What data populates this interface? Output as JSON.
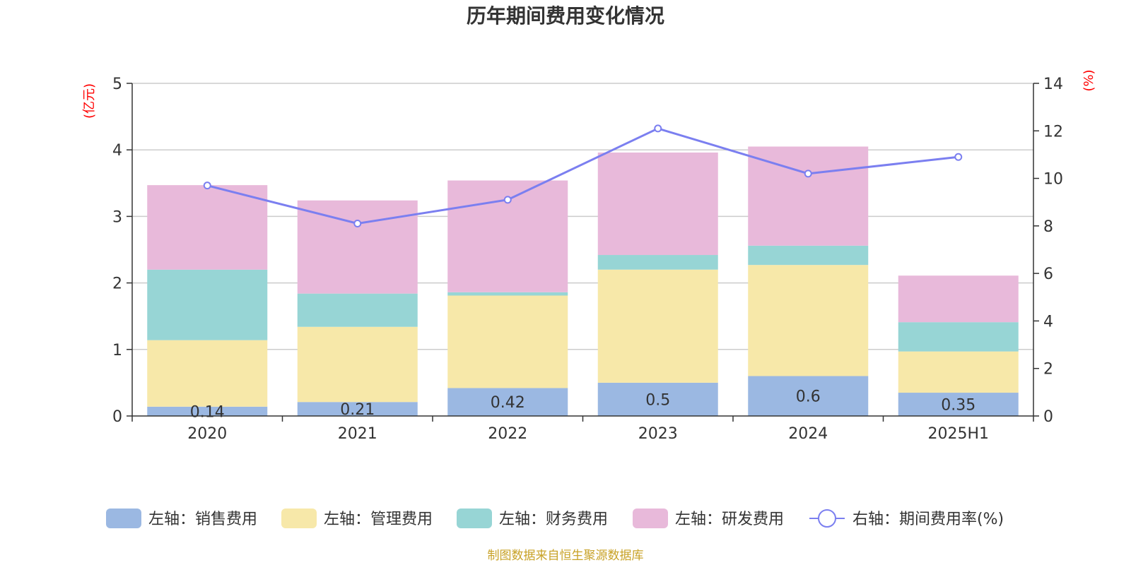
{
  "chart_data": {
    "type": "bar",
    "title": "历年期间费用变化情况",
    "categories": [
      "2020",
      "2021",
      "2022",
      "2023",
      "2024",
      "2025H1"
    ],
    "left_axis": {
      "unit": "(亿元)",
      "ylim": [
        0,
        5
      ],
      "ticks": [
        "0",
        "1",
        "2",
        "3",
        "4",
        "5"
      ]
    },
    "right_axis": {
      "unit": "(%)",
      "ylim": [
        0,
        14
      ],
      "ticks": [
        "0",
        "2",
        "4",
        "6",
        "8",
        "10",
        "12",
        "14"
      ]
    },
    "stacked": true,
    "series": [
      {
        "name": "左轴：销售费用",
        "color": "#9bb8e2",
        "values": [
          0.14,
          0.21,
          0.42,
          0.5,
          0.6,
          0.35
        ],
        "labels": [
          "0.14",
          "0.21",
          "0.42",
          "0.5",
          "0.6",
          "0.35"
        ]
      },
      {
        "name": "左轴：管理费用",
        "color": "#f7e8a9",
        "values": [
          1.0,
          1.13,
          1.39,
          1.7,
          1.67,
          0.62
        ]
      },
      {
        "name": "左轴：财务费用",
        "color": "#97d5d5",
        "values": [
          1.06,
          0.5,
          0.05,
          0.22,
          0.29,
          0.44
        ]
      },
      {
        "name": "左轴：研发费用",
        "color": "#e8b9da",
        "values": [
          1.27,
          1.4,
          1.68,
          1.54,
          1.49,
          0.7
        ]
      }
    ],
    "line_series": {
      "name": "右轴：期间费用率(%)",
      "color": "#7b7ff0",
      "axis": "right",
      "values": [
        9.7,
        8.1,
        9.1,
        12.1,
        10.2,
        10.9
      ]
    },
    "grid": true,
    "legend_position": "bottom"
  },
  "source_text": "制图数据来自恒生聚源数据库"
}
